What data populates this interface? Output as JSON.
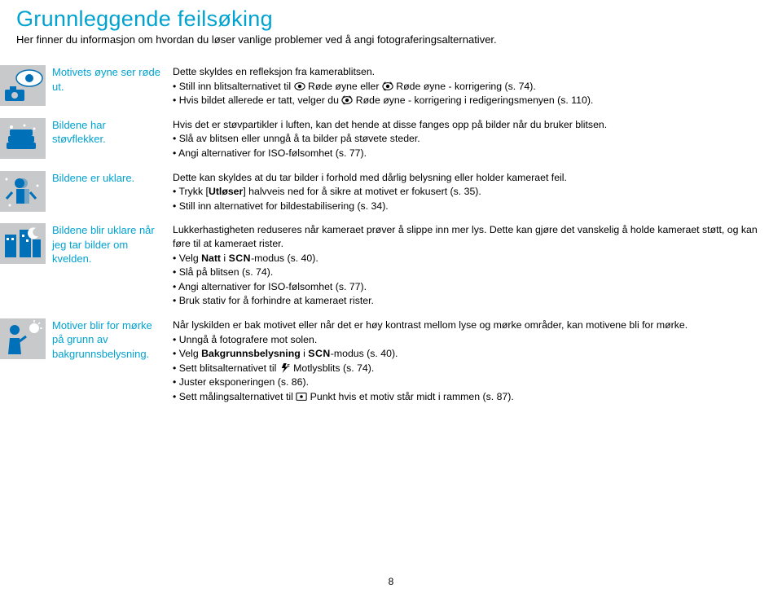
{
  "title": "Grunnleggende feilsøking",
  "subtitle": "Her finner du informasjon om hvordan du løser vanlige problemer ved å angi fotograferingsalternativer.",
  "page_number": "8",
  "colors": {
    "accent": "#00a2d0",
    "text": "#000000",
    "icon_bg": "#c8c9cb",
    "icon_fg": "#0070b8"
  },
  "rows": [
    {
      "label": "Motivets øyne ser røde ut.",
      "desc_intro": "Dette skyldes en refleksjon fra kamerablitsen.",
      "bullets": [
        "Still inn blitsalternativet til <eye> Røde øyne eller <eye2> Røde øyne - korrigering (s. 74).",
        "Hvis bildet allerede er tatt, velger du <eye2> Røde øyne - korrigering i redigeringsmenyen (s. 110)."
      ]
    },
    {
      "label": "Bildene har støvflekker.",
      "desc_intro": "Hvis det er støvpartikler i luften, kan det hende at disse fanges opp på bilder når du bruker blitsen.",
      "bullets": [
        "Slå av blitsen eller unngå å ta bilder på støvete steder.",
        "Angi alternativer for ISO-følsomhet (s. 77)."
      ]
    },
    {
      "label": "Bildene er uklare.",
      "desc_intro": "Dette kan skyldes at du tar bilder i forhold med dårlig belysning eller holder kameraet feil.",
      "bullets": [
        "Trykk [<b>Utløser</b>] halvveis ned for å sikre at motivet er fokusert (s. 35).",
        "Still inn alternativet for bildestabilisering (s. 34)."
      ]
    },
    {
      "label": "Bildene blir uklare når jeg tar bilder om kvelden.",
      "desc_intro": "Lukkerhastigheten reduseres når kameraet prøver å slippe inn mer lys. Dette kan gjøre det vanskelig å holde kameraet støtt, og kan føre til at kameraet rister.",
      "bullets": [
        "Velg <b>Natt</b> i <scn>SCN</scn>-modus (s. 40).",
        "Slå på blitsen (s. 74).",
        "Angi alternativer for ISO-følsomhet (s. 77).",
        "Bruk stativ for å forhindre at kameraet rister."
      ]
    },
    {
      "label": "Motiver blir for mørke på grunn av bakgrunnsbelysning.",
      "desc_intro": "Når lyskilden er bak motivet eller når det er høy kontrast mellom lyse og mørke områder, kan motivene bli for mørke.",
      "bullets": [
        "Unngå å fotografere mot solen.",
        "Velg <b>Bakgrunnsbelysning</b> i <scn>SCN</scn>-modus (s. 40).",
        "Sett blitsalternativet til <flash> Motlysblits (s. 74).",
        "Juster eksponeringen (s. 86).",
        "Sett målingsalternativet til <dot> Punkt hvis et motiv står midt i rammen (s. 87)."
      ]
    }
  ]
}
